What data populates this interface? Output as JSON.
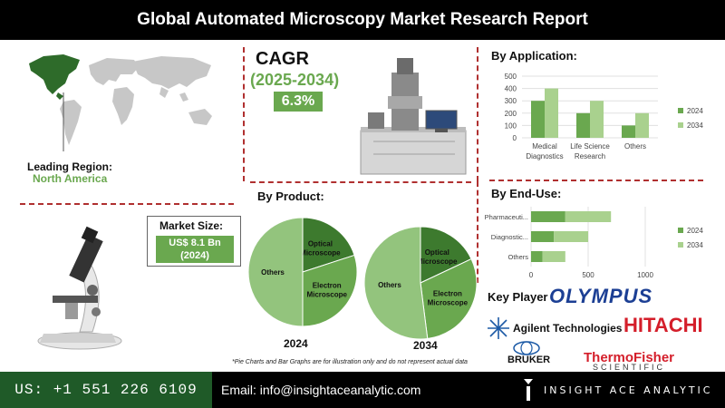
{
  "title": "Global Automated Microscopy Market Research Report",
  "cagr": {
    "label": "CAGR",
    "period": "(2025-2034)",
    "value": "6.3%"
  },
  "leading_region": {
    "label": "Leading Region:",
    "value": "North America"
  },
  "market_size": {
    "label": "Market Size:",
    "value_line1": "US$ 8.1 Bn",
    "value_line2": "(2024)"
  },
  "colors": {
    "dark_green": "#1f5a28",
    "green": "#6aa84f",
    "light_green": "#93c47d",
    "dashed_red": "#b03030"
  },
  "disclaimer": "*Pie Charts and Bar Graphs are for illustration only and do not represent actual data",
  "key_player": {
    "label": "Key Player",
    "companies": [
      "OLYMPUS",
      "Agilent Technologies",
      "HITACHI",
      "BRUKER",
      "ThermoFisher",
      "SCIENTIFIC"
    ]
  },
  "footer": {
    "phone": "US: +1 551 226 6109",
    "email": "Email: info@insightaceanalytic.com",
    "brand": "INSIGHT ACE ANALYTIC"
  },
  "chart_data": [
    {
      "type": "bar",
      "title": "By Application:",
      "categories": [
        "Medical Diagnostics",
        "Life Science Research",
        "Others"
      ],
      "category_lines": [
        [
          "Medical",
          "Diagnostics"
        ],
        [
          "Life Science",
          "Research"
        ],
        [
          "Others"
        ]
      ],
      "series": [
        {
          "name": "2024",
          "values": [
            300,
            200,
            100
          ],
          "color": "#6aa84f"
        },
        {
          "name": "2034",
          "values": [
            400,
            300,
            200
          ],
          "color": "#a9d18e"
        }
      ],
      "ylim": [
        0,
        500
      ],
      "yticks": [
        "0",
        "100",
        "200",
        "300",
        "400",
        "500"
      ],
      "legend": "right"
    },
    {
      "type": "bar",
      "orientation": "horizontal",
      "title": "By End-Use:",
      "categories": [
        "Pharmaceuti...",
        "Diagnostic...",
        "Others"
      ],
      "series": [
        {
          "name": "2024",
          "values": [
            300,
            200,
            100
          ],
          "color": "#6aa84f"
        },
        {
          "name": "2034",
          "values": [
            400,
            300,
            200
          ],
          "color": "#a9d18e"
        }
      ],
      "xlim": [
        0,
        1000
      ],
      "xticks": [
        "0",
        "500",
        "1000"
      ],
      "stacked": true,
      "legend": "right"
    },
    {
      "type": "pie",
      "title": "By Product:",
      "caption": "2024",
      "slices": [
        {
          "label": "Optical Microscope",
          "lines": [
            "Optical",
            "Microscope"
          ],
          "value": 20,
          "color": "#3d7a2e"
        },
        {
          "label": "Electron Microscope",
          "lines": [
            "Electron",
            "Microscope"
          ],
          "value": 30,
          "color": "#6aa84f"
        },
        {
          "label": "Others",
          "lines": [
            "Others"
          ],
          "value": 50,
          "color": "#93c47d"
        }
      ]
    },
    {
      "type": "pie",
      "caption": "2034",
      "slices": [
        {
          "label": "Optical Microscope",
          "lines": [
            "Optical",
            "Microscope"
          ],
          "value": 18,
          "color": "#3d7a2e"
        },
        {
          "label": "Electron Microscope",
          "lines": [
            "Electron",
            "Microscope"
          ],
          "value": 30,
          "color": "#6aa84f"
        },
        {
          "label": "Others",
          "lines": [
            "Others"
          ],
          "value": 52,
          "color": "#93c47d"
        }
      ]
    }
  ]
}
